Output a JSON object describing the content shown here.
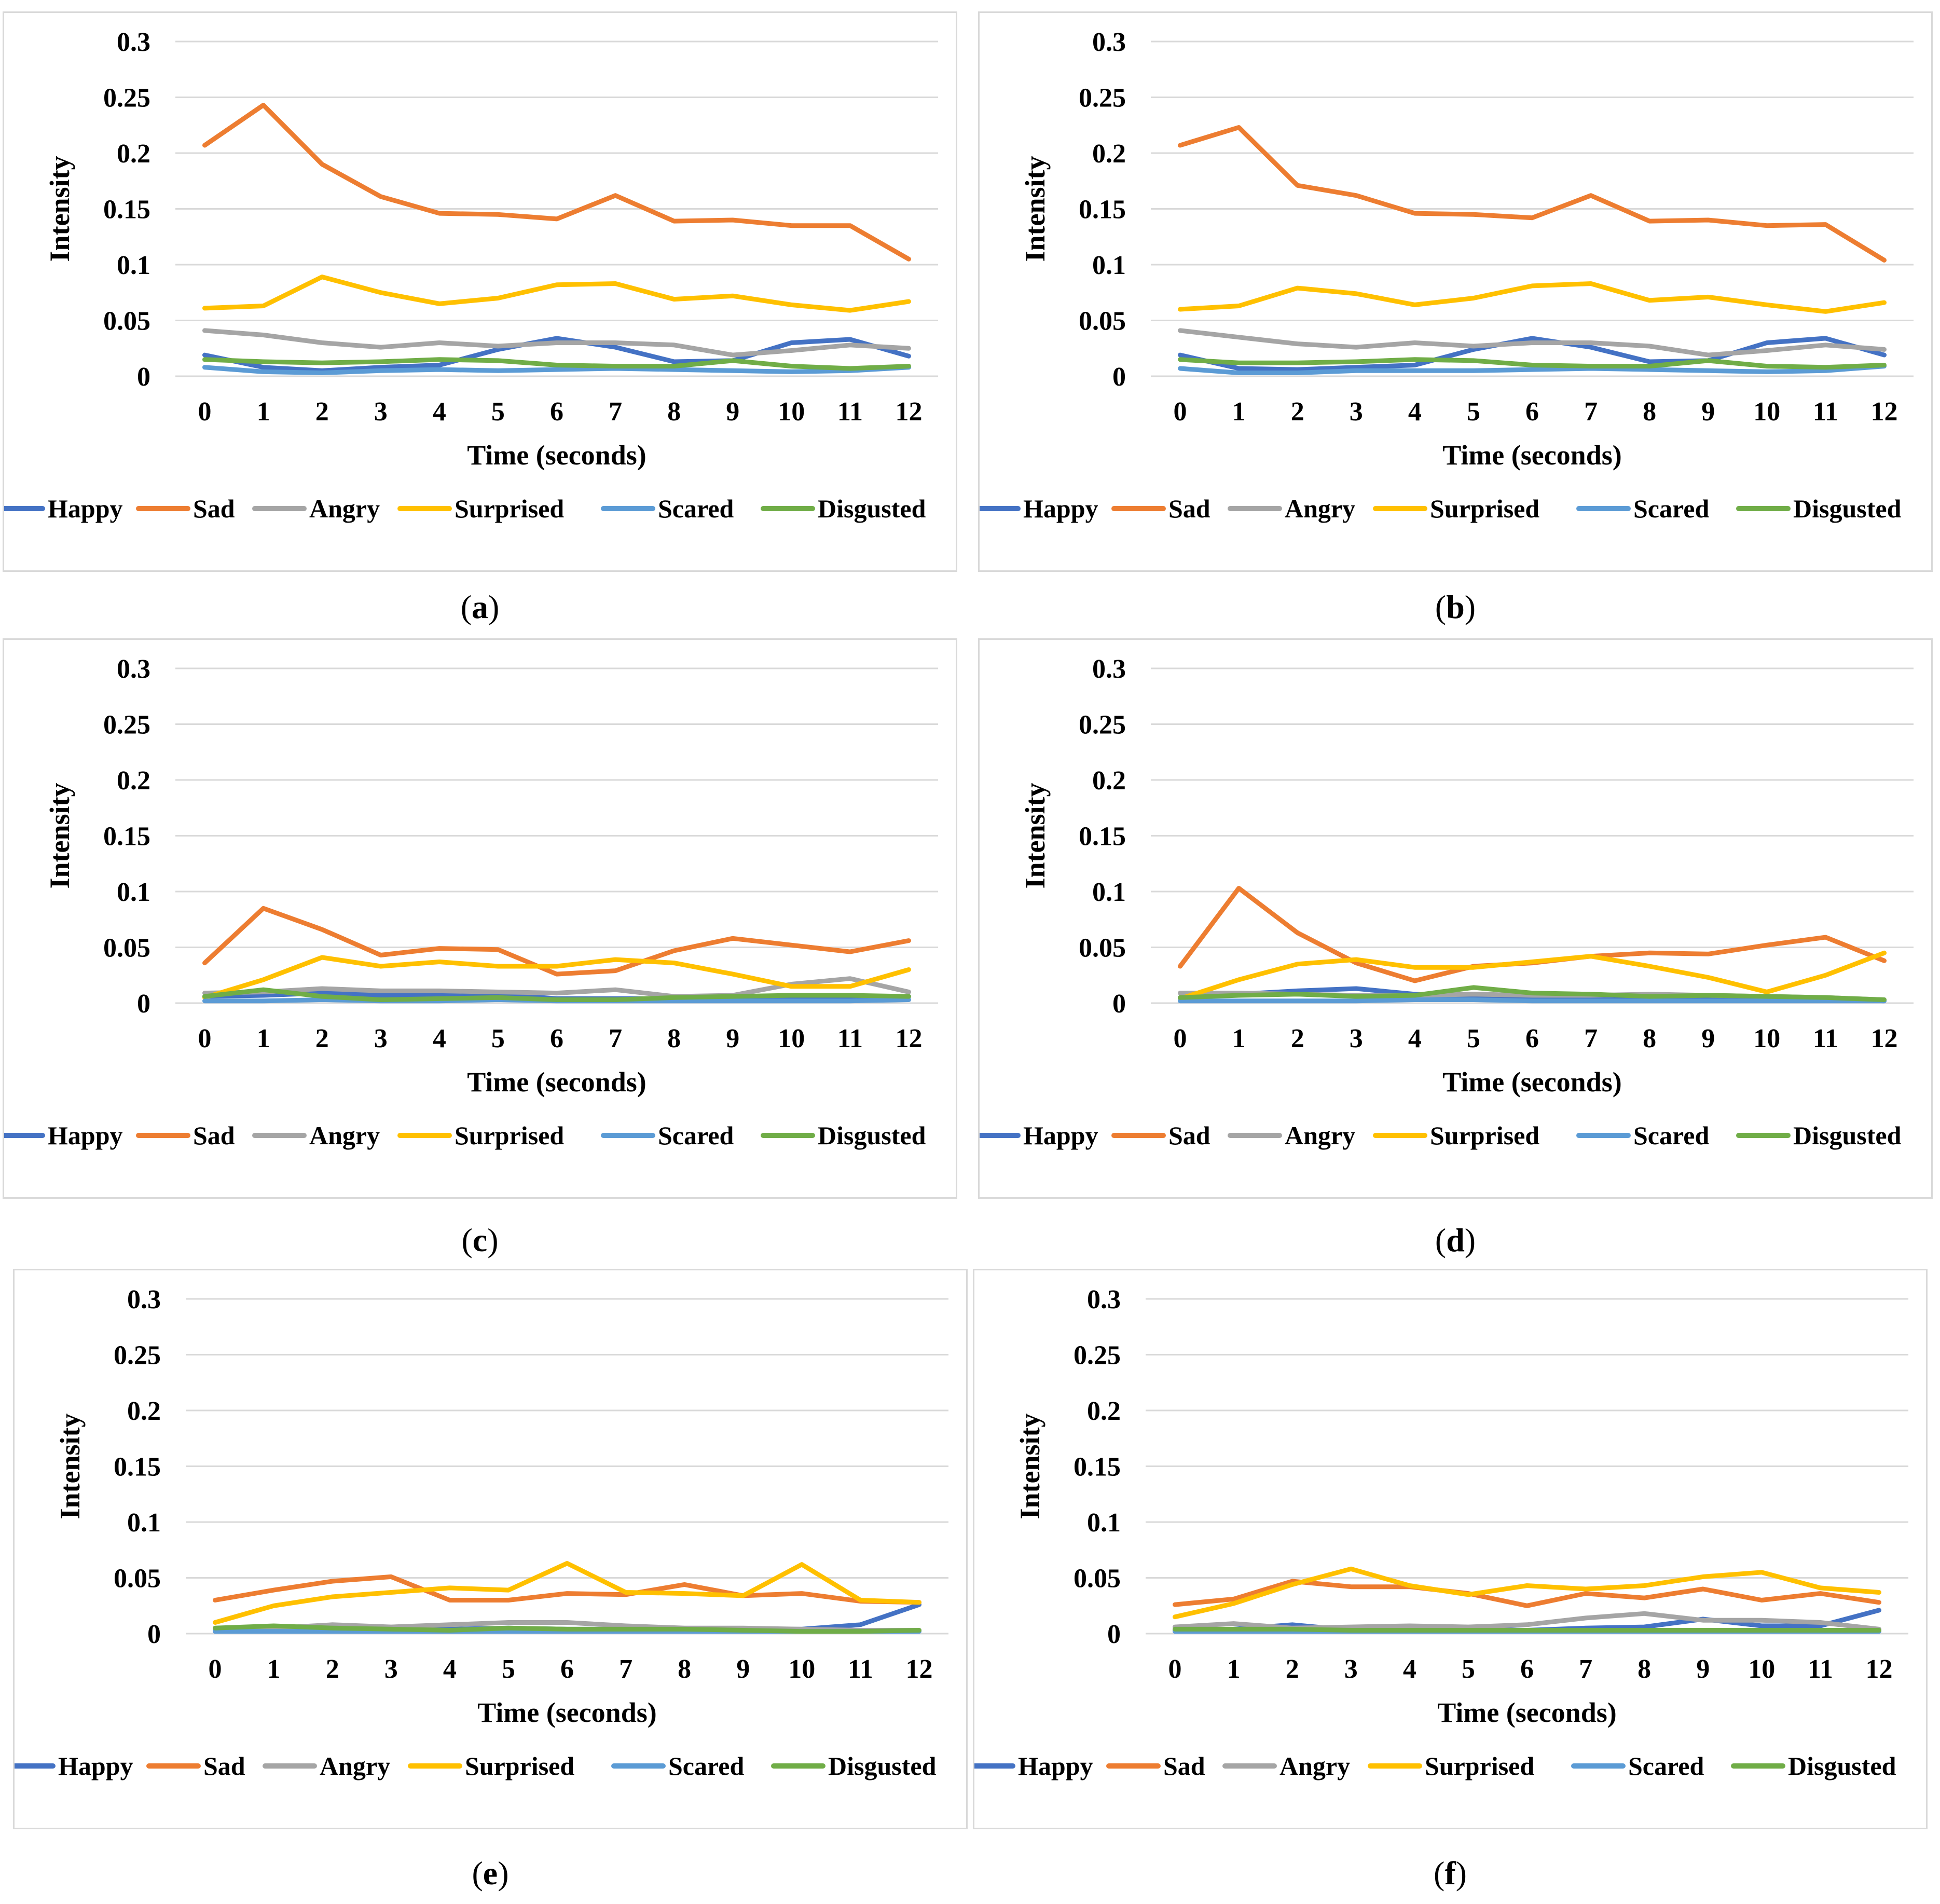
{
  "colors": {
    "Happy": "#4472c4",
    "Sad": "#ed7d31",
    "Angry": "#a5a5a5",
    "Surprised": "#ffc000",
    "Scared": "#5b9bd5",
    "Disgusted": "#70ad47",
    "grid": "#d9d9d9"
  },
  "chart_data": [
    {
      "type": "line",
      "panel": "a",
      "xlabel": "Time (seconds)",
      "ylabel": "Intensity",
      "ylim": [
        0,
        0.3
      ],
      "yticks": [
        "0",
        "0.05",
        "0.1",
        "0.15",
        "0.2",
        "0.25",
        "0.3"
      ],
      "categories": [
        "0",
        "1",
        "2",
        "3",
        "4",
        "5",
        "6",
        "7",
        "8",
        "9",
        "10",
        "11",
        "12"
      ],
      "series": [
        {
          "name": "Happy",
          "values": [
            0.019,
            0.008,
            0.005,
            0.008,
            0.01,
            0.024,
            0.034,
            0.026,
            0.013,
            0.014,
            0.03,
            0.033,
            0.018
          ]
        },
        {
          "name": "Sad",
          "values": [
            0.207,
            0.243,
            0.19,
            0.161,
            0.146,
            0.145,
            0.141,
            0.162,
            0.139,
            0.14,
            0.135,
            0.135,
            0.105
          ]
        },
        {
          "name": "Angry",
          "values": [
            0.041,
            0.037,
            0.03,
            0.026,
            0.03,
            0.027,
            0.03,
            0.03,
            0.028,
            0.019,
            0.023,
            0.028,
            0.025
          ]
        },
        {
          "name": "Surprised",
          "values": [
            0.061,
            0.063,
            0.089,
            0.075,
            0.065,
            0.07,
            0.082,
            0.083,
            0.069,
            0.072,
            0.064,
            0.059,
            0.067
          ]
        },
        {
          "name": "Scared",
          "values": [
            0.008,
            0.004,
            0.003,
            0.005,
            0.006,
            0.005,
            0.006,
            0.007,
            0.006,
            0.005,
            0.004,
            0.005,
            0.008
          ]
        },
        {
          "name": "Disgusted",
          "values": [
            0.015,
            0.013,
            0.012,
            0.013,
            0.015,
            0.014,
            0.01,
            0.009,
            0.009,
            0.014,
            0.009,
            0.007,
            0.009
          ]
        }
      ]
    },
    {
      "type": "line",
      "panel": "b",
      "xlabel": "Time (seconds)",
      "ylabel": "Intensity",
      "ylim": [
        0,
        0.3
      ],
      "yticks": [
        "0",
        "0.05",
        "0.1",
        "0.15",
        "0.2",
        "0.25",
        "0.3"
      ],
      "categories": [
        "0",
        "1",
        "2",
        "3",
        "4",
        "5",
        "6",
        "7",
        "8",
        "9",
        "10",
        "11",
        "12"
      ],
      "series": [
        {
          "name": "Happy",
          "values": [
            0.019,
            0.007,
            0.006,
            0.008,
            0.01,
            0.024,
            0.034,
            0.026,
            0.013,
            0.014,
            0.03,
            0.034,
            0.019
          ]
        },
        {
          "name": "Sad",
          "values": [
            0.207,
            0.223,
            0.171,
            0.162,
            0.146,
            0.145,
            0.142,
            0.162,
            0.139,
            0.14,
            0.135,
            0.136,
            0.104
          ]
        },
        {
          "name": "Angry",
          "values": [
            0.041,
            0.035,
            0.029,
            0.026,
            0.03,
            0.027,
            0.03,
            0.03,
            0.027,
            0.019,
            0.023,
            0.028,
            0.024
          ]
        },
        {
          "name": "Surprised",
          "values": [
            0.06,
            0.063,
            0.079,
            0.074,
            0.064,
            0.07,
            0.081,
            0.083,
            0.068,
            0.071,
            0.064,
            0.058,
            0.066
          ]
        },
        {
          "name": "Scared",
          "values": [
            0.007,
            0.003,
            0.003,
            0.005,
            0.005,
            0.005,
            0.006,
            0.007,
            0.006,
            0.005,
            0.004,
            0.005,
            0.009
          ]
        },
        {
          "name": "Disgusted",
          "values": [
            0.015,
            0.012,
            0.012,
            0.013,
            0.015,
            0.014,
            0.01,
            0.009,
            0.009,
            0.014,
            0.009,
            0.008,
            0.01
          ]
        }
      ]
    },
    {
      "type": "line",
      "panel": "c",
      "xlabel": "Time (seconds)",
      "ylabel": "Intensity",
      "ylim": [
        0,
        0.3
      ],
      "yticks": [
        "0",
        "0.05",
        "0.1",
        "0.15",
        "0.2",
        "0.25",
        "0.3"
      ],
      "categories": [
        "0",
        "1",
        "2",
        "3",
        "4",
        "5",
        "6",
        "7",
        "8",
        "9",
        "10",
        "11",
        "12"
      ],
      "series": [
        {
          "name": "Happy",
          "values": [
            0.006,
            0.007,
            0.009,
            0.007,
            0.008,
            0.008,
            0.004,
            0.004,
            0.004,
            0.005,
            0.004,
            0.005,
            0.006
          ]
        },
        {
          "name": "Sad",
          "values": [
            0.036,
            0.085,
            0.066,
            0.043,
            0.049,
            0.048,
            0.026,
            0.029,
            0.047,
            0.058,
            0.052,
            0.046,
            0.056
          ]
        },
        {
          "name": "Angry",
          "values": [
            0.009,
            0.01,
            0.013,
            0.011,
            0.011,
            0.01,
            0.009,
            0.012,
            0.006,
            0.007,
            0.017,
            0.022,
            0.01
          ]
        },
        {
          "name": "Surprised",
          "values": [
            0.005,
            0.021,
            0.041,
            0.033,
            0.037,
            0.033,
            0.033,
            0.039,
            0.036,
            0.026,
            0.015,
            0.015,
            0.03
          ]
        },
        {
          "name": "Scared",
          "values": [
            0.002,
            0.002,
            0.003,
            0.002,
            0.002,
            0.003,
            0.002,
            0.002,
            0.002,
            0.002,
            0.002,
            0.002,
            0.003
          ]
        },
        {
          "name": "Disgusted",
          "values": [
            0.006,
            0.012,
            0.006,
            0.003,
            0.004,
            0.005,
            0.003,
            0.003,
            0.005,
            0.006,
            0.007,
            0.007,
            0.006
          ]
        }
      ]
    },
    {
      "type": "line",
      "panel": "d",
      "xlabel": "Time (seconds)",
      "ylabel": "Intensity",
      "ylim": [
        0,
        0.3
      ],
      "yticks": [
        "0",
        "0.05",
        "0.1",
        "0.15",
        "0.2",
        "0.25",
        "0.3"
      ],
      "categories": [
        "0",
        "1",
        "2",
        "3",
        "4",
        "5",
        "6",
        "7",
        "8",
        "9",
        "10",
        "11",
        "12"
      ],
      "series": [
        {
          "name": "Happy",
          "values": [
            0.005,
            0.008,
            0.011,
            0.013,
            0.008,
            0.005,
            0.004,
            0.003,
            0.003,
            0.003,
            0.003,
            0.004,
            0.002
          ]
        },
        {
          "name": "Sad",
          "values": [
            0.033,
            0.103,
            0.063,
            0.036,
            0.02,
            0.033,
            0.036,
            0.042,
            0.045,
            0.044,
            0.052,
            0.059,
            0.038
          ]
        },
        {
          "name": "Angry",
          "values": [
            0.009,
            0.009,
            0.008,
            0.007,
            0.007,
            0.008,
            0.007,
            0.007,
            0.008,
            0.007,
            0.006,
            0.005,
            0.003
          ]
        },
        {
          "name": "Surprised",
          "values": [
            0.004,
            0.021,
            0.035,
            0.039,
            0.032,
            0.032,
            0.037,
            0.042,
            0.033,
            0.023,
            0.01,
            0.025,
            0.045
          ]
        },
        {
          "name": "Scared",
          "values": [
            0.002,
            0.002,
            0.002,
            0.002,
            0.003,
            0.003,
            0.002,
            0.002,
            0.002,
            0.002,
            0.002,
            0.002,
            0.002
          ]
        },
        {
          "name": "Disgusted",
          "values": [
            0.005,
            0.007,
            0.008,
            0.006,
            0.007,
            0.014,
            0.009,
            0.008,
            0.006,
            0.007,
            0.006,
            0.005,
            0.003
          ]
        }
      ]
    },
    {
      "type": "line",
      "panel": "e",
      "xlabel": "Time (seconds)",
      "ylabel": "Intensity",
      "ylim": [
        0,
        0.3
      ],
      "yticks": [
        "0",
        "0.05",
        "0.1",
        "0.15",
        "0.2",
        "0.25",
        "0.3"
      ],
      "categories": [
        "0",
        "1",
        "2",
        "3",
        "4",
        "5",
        "6",
        "7",
        "8",
        "9",
        "10",
        "11",
        "12"
      ],
      "series": [
        {
          "name": "Happy",
          "values": [
            0.003,
            0.004,
            0.005,
            0.004,
            0.004,
            0.005,
            0.004,
            0.004,
            0.003,
            0.004,
            0.004,
            0.008,
            0.026
          ]
        },
        {
          "name": "Sad",
          "values": [
            0.03,
            0.039,
            0.047,
            0.051,
            0.03,
            0.03,
            0.036,
            0.035,
            0.044,
            0.034,
            0.036,
            0.029,
            0.028
          ]
        },
        {
          "name": "Angry",
          "values": [
            0.004,
            0.005,
            0.008,
            0.006,
            0.008,
            0.01,
            0.01,
            0.007,
            0.005,
            0.005,
            0.004,
            0.003,
            0.003
          ]
        },
        {
          "name": "Surprised",
          "values": [
            0.01,
            0.025,
            0.033,
            0.037,
            0.041,
            0.039,
            0.063,
            0.037,
            0.036,
            0.034,
            0.062,
            0.03,
            0.028
          ]
        },
        {
          "name": "Scared",
          "values": [
            0.002,
            0.002,
            0.002,
            0.002,
            0.002,
            0.002,
            0.002,
            0.002,
            0.002,
            0.002,
            0.002,
            0.002,
            0.002
          ]
        },
        {
          "name": "Disgusted",
          "values": [
            0.005,
            0.007,
            0.005,
            0.004,
            0.003,
            0.005,
            0.004,
            0.004,
            0.004,
            0.003,
            0.002,
            0.002,
            0.003
          ]
        }
      ]
    },
    {
      "type": "line",
      "panel": "f",
      "xlabel": "Time (seconds)",
      "ylabel": "Intensity",
      "ylim": [
        0,
        0.3
      ],
      "yticks": [
        "0",
        "0.05",
        "0.1",
        "0.15",
        "0.2",
        "0.25",
        "0.3"
      ],
      "categories": [
        "0",
        "1",
        "2",
        "3",
        "4",
        "5",
        "6",
        "7",
        "8",
        "9",
        "10",
        "11",
        "12"
      ],
      "series": [
        {
          "name": "Happy",
          "values": [
            0.003,
            0.004,
            0.008,
            0.003,
            0.004,
            0.004,
            0.003,
            0.005,
            0.006,
            0.013,
            0.007,
            0.007,
            0.021
          ]
        },
        {
          "name": "Sad",
          "values": [
            0.026,
            0.031,
            0.047,
            0.042,
            0.042,
            0.036,
            0.025,
            0.036,
            0.032,
            0.04,
            0.03,
            0.036,
            0.028
          ]
        },
        {
          "name": "Angry",
          "values": [
            0.006,
            0.009,
            0.005,
            0.006,
            0.007,
            0.006,
            0.008,
            0.014,
            0.018,
            0.012,
            0.012,
            0.01,
            0.004
          ]
        },
        {
          "name": "Surprised",
          "values": [
            0.015,
            0.027,
            0.044,
            0.058,
            0.043,
            0.035,
            0.043,
            0.04,
            0.043,
            0.051,
            0.055,
            0.041,
            0.037
          ]
        },
        {
          "name": "Scared",
          "values": [
            0.002,
            0.002,
            0.002,
            0.002,
            0.002,
            0.002,
            0.002,
            0.002,
            0.002,
            0.002,
            0.002,
            0.002,
            0.002
          ]
        },
        {
          "name": "Disgusted",
          "values": [
            0.004,
            0.004,
            0.004,
            0.003,
            0.003,
            0.003,
            0.003,
            0.003,
            0.003,
            0.003,
            0.003,
            0.003,
            0.003
          ]
        }
      ]
    }
  ],
  "captions": [
    {
      "label": "a",
      "open": "(",
      "close": ")"
    },
    {
      "label": "b",
      "open": "(",
      "close": ")"
    },
    {
      "label": "c",
      "open": "(",
      "close": ")"
    },
    {
      "label": "d",
      "open": "(",
      "close": ")"
    },
    {
      "label": "e",
      "open": "(",
      "close": ")"
    },
    {
      "label": "f",
      "open": "(",
      "close": ")"
    }
  ]
}
